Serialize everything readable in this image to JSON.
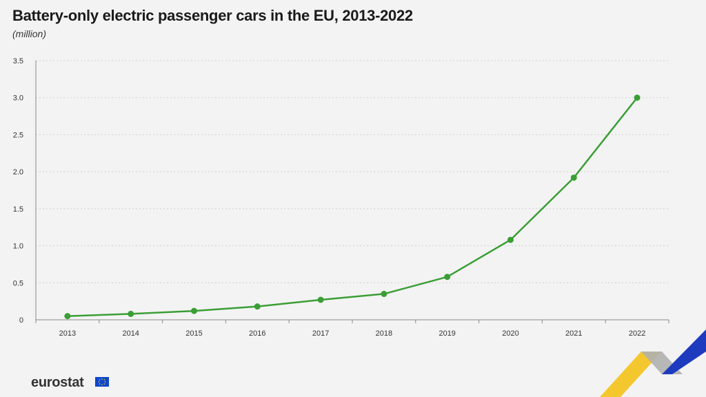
{
  "header": {
    "title": "Battery-only electric passenger cars in the EU, 2013-2022",
    "subtitle": "(million)"
  },
  "footer": {
    "brand": "eurostat"
  },
  "colors": {
    "line": "#3a9e35",
    "grid": "#cfcfcf",
    "axis": "#888888",
    "background": "#f3f3f3",
    "flag": "#0e47cb",
    "decor_yellow": "#f5c21a",
    "decor_gray": "#b0b0b0",
    "decor_blue": "#1e3bbf"
  },
  "chart_data": {
    "type": "line",
    "categories": [
      "2013",
      "2014",
      "2015",
      "2016",
      "2017",
      "2018",
      "2019",
      "2020",
      "2021",
      "2022"
    ],
    "series": [
      {
        "values": [
          0.05,
          0.08,
          0.12,
          0.18,
          0.27,
          0.35,
          0.58,
          1.08,
          1.92,
          3.0
        ]
      }
    ],
    "yticks": [
      "0",
      "0.5",
      "1.0",
      "1.5",
      "2.0",
      "2.5",
      "3.0",
      "3.5"
    ],
    "ylim": [
      0,
      3.5
    ],
    "grid": true,
    "legend": "none"
  }
}
